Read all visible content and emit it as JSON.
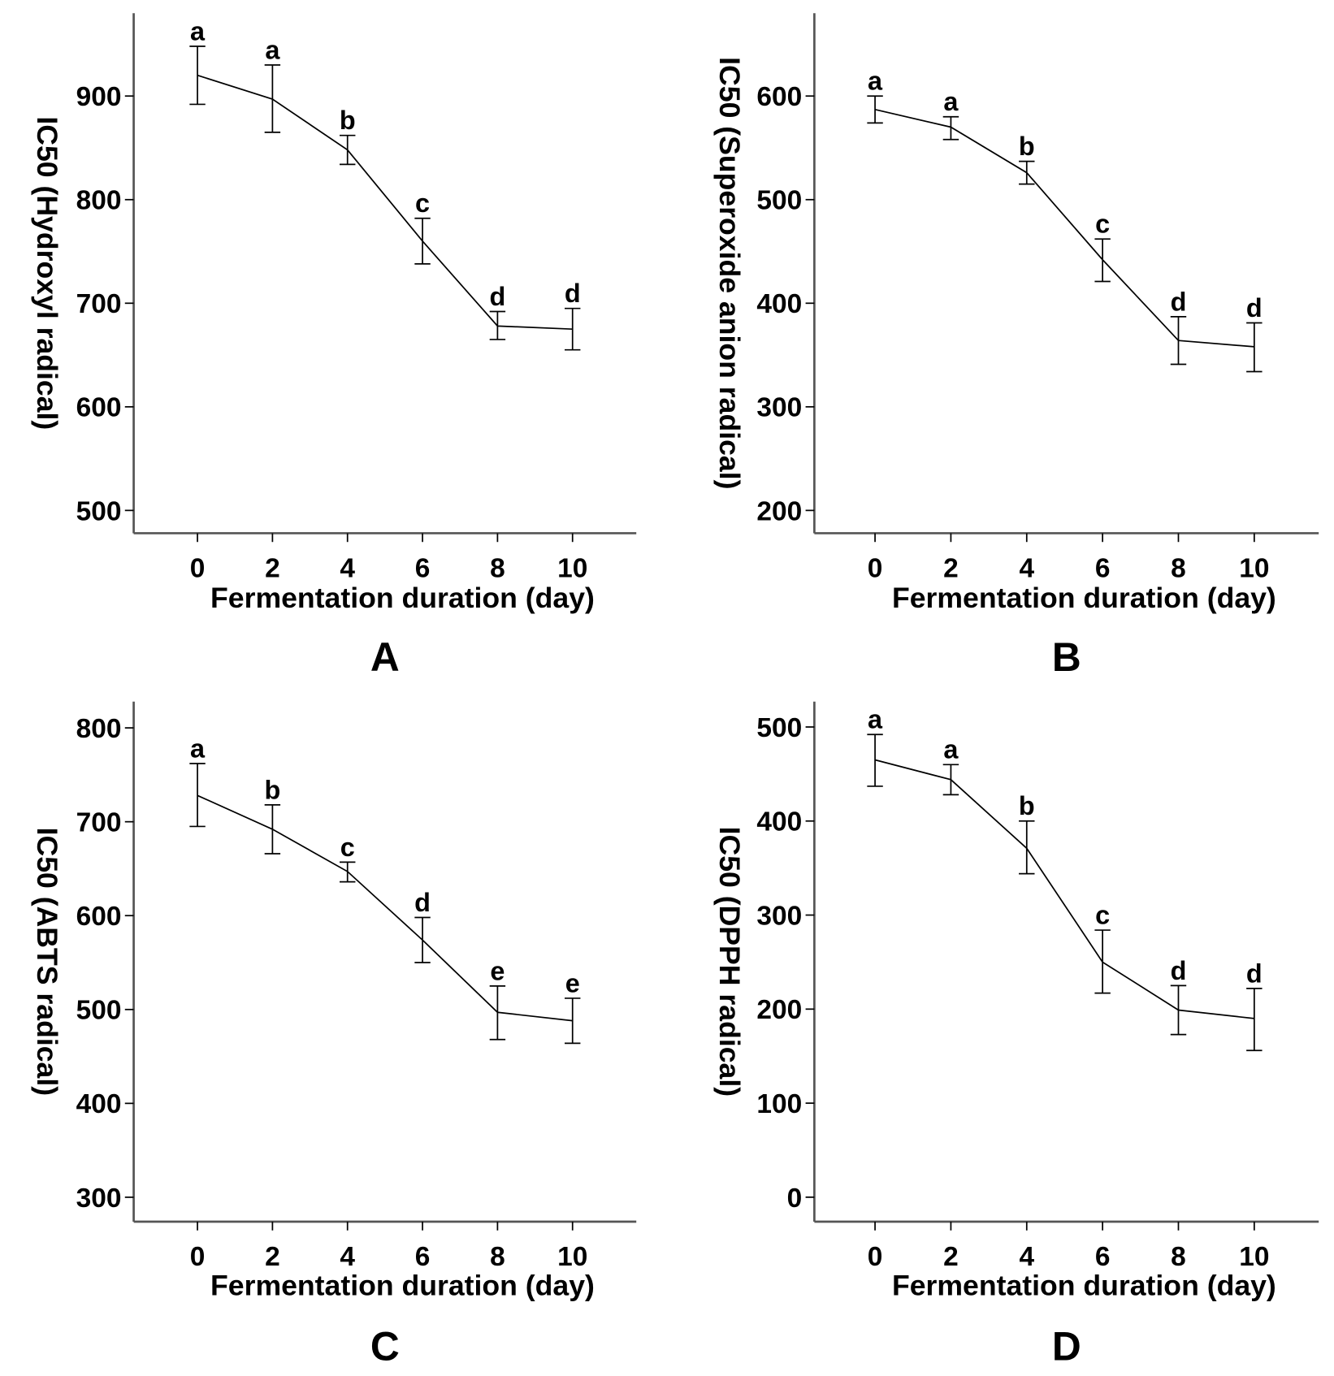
{
  "chart_data": [
    {
      "type": "line",
      "panel_label": "A",
      "xlabel": "Fermentation duration (day)",
      "ylabel": "IC50 (Hydroxyl radical)",
      "x": [
        0,
        2,
        4,
        6,
        8,
        10
      ],
      "xticks": [
        0,
        2,
        4,
        6,
        8,
        10
      ],
      "yticks": [
        500,
        600,
        700,
        800,
        900
      ],
      "ylim": [
        478,
        980
      ],
      "xlim": [
        -1.7,
        11.7
      ],
      "values": [
        920,
        897,
        848,
        760,
        678,
        675
      ],
      "error_upper": [
        948,
        930,
        862,
        782,
        692,
        695
      ],
      "error_lower": [
        892,
        865,
        834,
        738,
        665,
        655
      ],
      "significance": [
        "a",
        "a",
        "b",
        "c",
        "d",
        "d"
      ],
      "grid": false,
      "line_color": "#000000"
    },
    {
      "type": "line",
      "panel_label": "B",
      "xlabel": "Fermentation duration (day)",
      "ylabel": "IC50 (Superoxide anion radical)",
      "x": [
        0,
        2,
        4,
        6,
        8,
        10
      ],
      "xticks": [
        0,
        2,
        4,
        6,
        8,
        10
      ],
      "yticks": [
        200,
        300,
        400,
        500,
        600
      ],
      "ylim": [
        178,
        680
      ],
      "xlim": [
        -1.6,
        11.7
      ],
      "values": [
        587,
        570,
        526,
        442,
        364,
        358
      ],
      "error_upper": [
        600,
        580,
        537,
        462,
        387,
        381
      ],
      "error_lower": [
        574,
        558,
        515,
        421,
        341,
        334
      ],
      "significance": [
        "a",
        "a",
        "b",
        "c",
        "d",
        "d"
      ],
      "grid": false,
      "line_color": "#000000"
    },
    {
      "type": "line",
      "panel_label": "C",
      "xlabel": "Fermentation duration (day)",
      "ylabel": "IC50 (ABTS radical)",
      "x": [
        0,
        2,
        4,
        6,
        8,
        10
      ],
      "xticks": [
        0,
        2,
        4,
        6,
        8,
        10
      ],
      "yticks": [
        300,
        400,
        500,
        600,
        700,
        800
      ],
      "ylim": [
        274,
        828
      ],
      "xlim": [
        -1.7,
        11.7
      ],
      "values": [
        728,
        692,
        647,
        574,
        497,
        488
      ],
      "error_upper": [
        762,
        718,
        657,
        598,
        525,
        512
      ],
      "error_lower": [
        695,
        666,
        636,
        550,
        468,
        464
      ],
      "significance": [
        "a",
        "b",
        "c",
        "d",
        "e",
        "e"
      ],
      "grid": false,
      "line_color": "#000000"
    },
    {
      "type": "line",
      "panel_label": "D",
      "xlabel": "Fermentation duration (day)",
      "ylabel": "IC50 (DPPH radical)",
      "x": [
        0,
        2,
        4,
        6,
        8,
        10
      ],
      "xticks": [
        0,
        2,
        4,
        6,
        8,
        10
      ],
      "yticks": [
        0,
        100,
        200,
        300,
        400,
        500
      ],
      "ylim": [
        -26,
        527
      ],
      "xlim": [
        -1.6,
        11.7
      ],
      "values": [
        465,
        444,
        371,
        250,
        199,
        190
      ],
      "error_upper": [
        492,
        460,
        400,
        284,
        225,
        222
      ],
      "error_lower": [
        437,
        428,
        344,
        217,
        173,
        156
      ],
      "significance": [
        "a",
        "a",
        "b",
        "c",
        "d",
        "d"
      ],
      "grid": false,
      "line_color": "#000000"
    }
  ]
}
